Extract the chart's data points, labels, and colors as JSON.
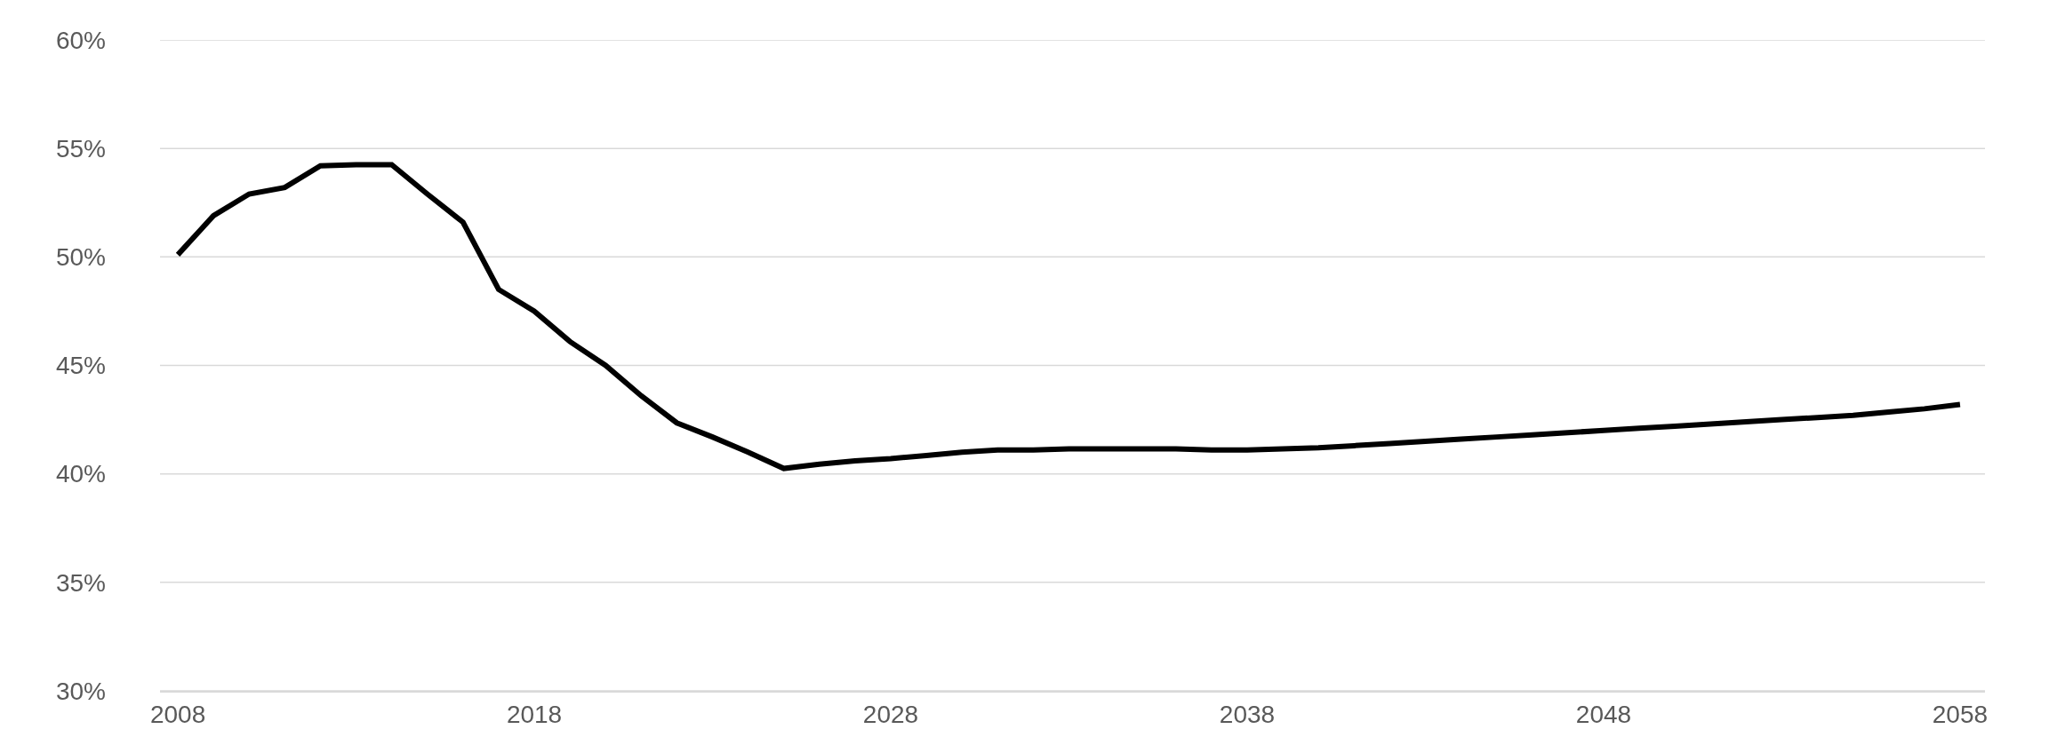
{
  "chart_data": {
    "type": "line",
    "x": [
      2008,
      2009,
      2010,
      2011,
      2012,
      2013,
      2014,
      2015,
      2016,
      2017,
      2018,
      2019,
      2020,
      2021,
      2022,
      2023,
      2024,
      2025,
      2026,
      2027,
      2028,
      2029,
      2030,
      2031,
      2032,
      2033,
      2034,
      2035,
      2036,
      2037,
      2038,
      2039,
      2040,
      2041,
      2042,
      2043,
      2044,
      2045,
      2046,
      2047,
      2048,
      2049,
      2050,
      2051,
      2052,
      2053,
      2054,
      2055,
      2056,
      2057,
      2058
    ],
    "series": [
      {
        "color": "#000000",
        "values": [
          50.1,
          51.9,
          52.9,
          53.2,
          54.2,
          54.25,
          54.25,
          52.9,
          51.6,
          48.5,
          47.5,
          46.1,
          45.0,
          43.6,
          42.35,
          41.7,
          41.0,
          40.25,
          40.45,
          40.6,
          40.7,
          40.85,
          41.0,
          41.1,
          41.1,
          41.15,
          41.15,
          41.15,
          41.15,
          41.1,
          41.1,
          41.15,
          41.2,
          41.3,
          41.4,
          41.5,
          41.6,
          41.7,
          41.8,
          41.9,
          42.0,
          42.1,
          42.2,
          42.3,
          42.4,
          42.5,
          42.6,
          42.7,
          42.85,
          43.0,
          43.2
        ]
      }
    ],
    "xlim": [
      2007.5,
      2058.7
    ],
    "xticks": [
      2008,
      2018,
      2028,
      2038,
      2048,
      2058
    ],
    "ylim": [
      30,
      60
    ],
    "yticks": [
      {
        "value": 30,
        "label": "30%"
      },
      {
        "value": 35,
        "label": "35%"
      },
      {
        "value": 40,
        "label": "40%"
      },
      {
        "value": 45,
        "label": "45%"
      },
      {
        "value": 50,
        "label": "50%"
      },
      {
        "value": 55,
        "label": "55%"
      },
      {
        "value": 60,
        "label": "60%"
      }
    ],
    "grid": "y",
    "marker": "none",
    "line_style": "solid"
  }
}
